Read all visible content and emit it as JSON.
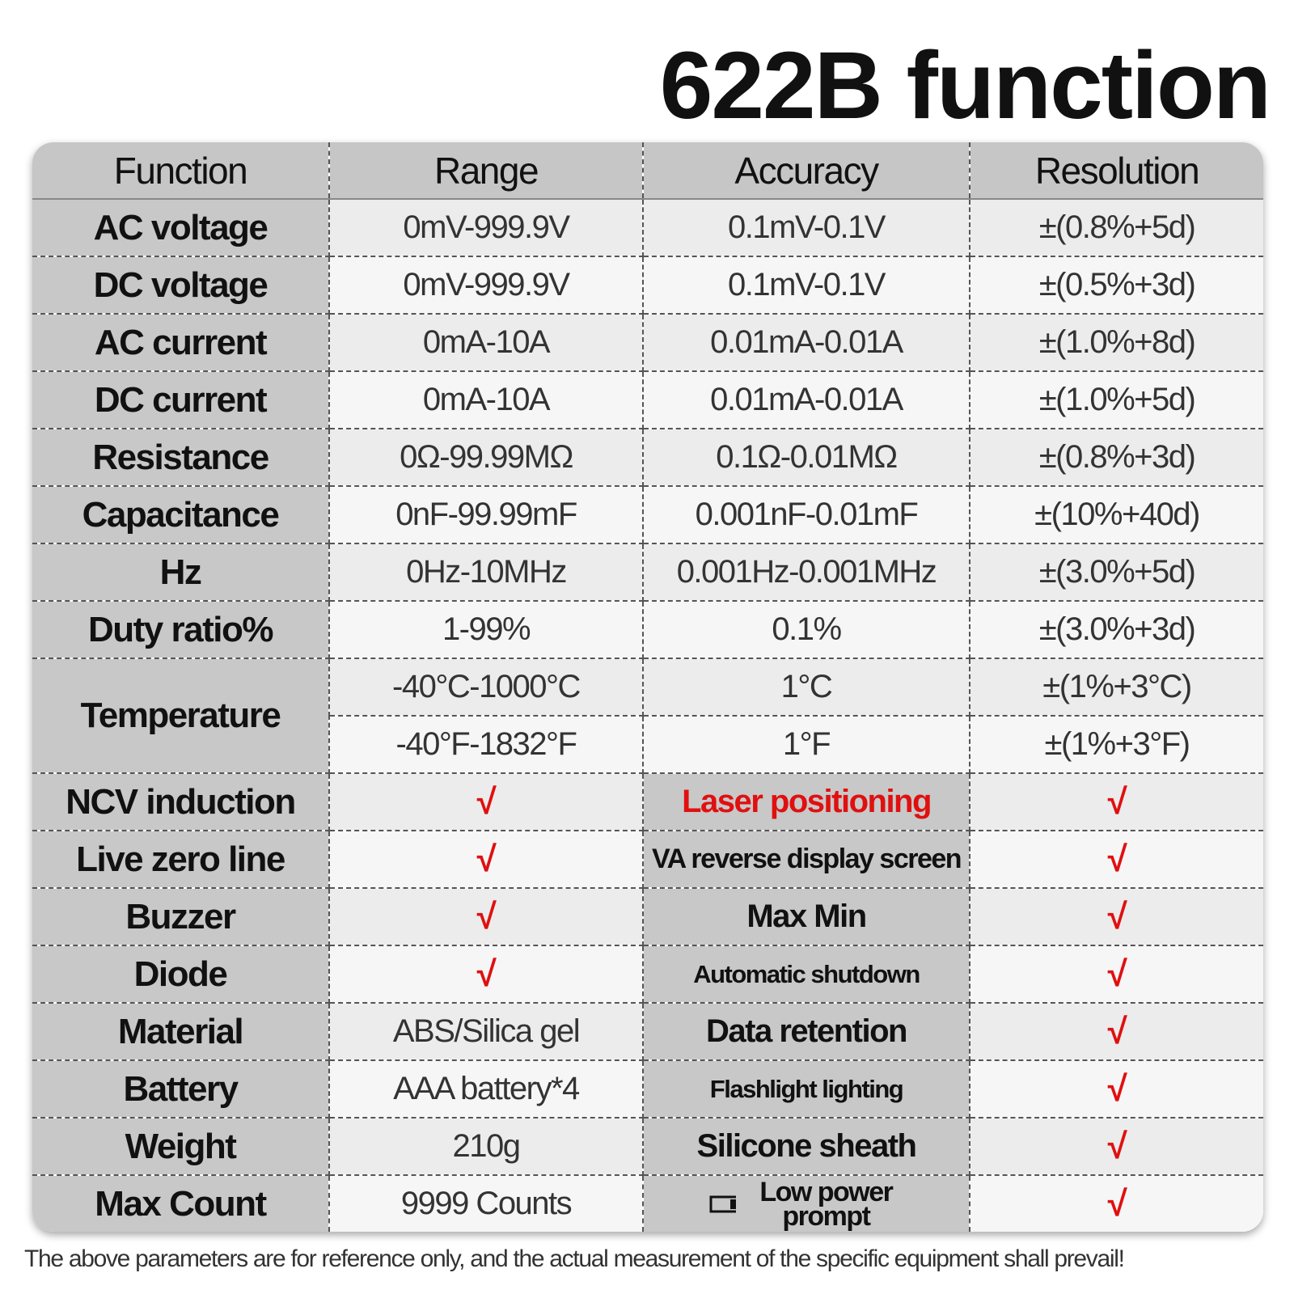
{
  "title": "622B function",
  "table": {
    "header": [
      "Function",
      "Range",
      "Accuracy",
      "Resolution"
    ],
    "measure_rows": [
      [
        "AC voltage",
        "0mV-999.9V",
        "0.1mV-0.1V",
        "±(0.8%+5d)"
      ],
      [
        "DC voltage",
        "0mV-999.9V",
        "0.1mV-0.1V",
        "±(0.5%+3d)"
      ],
      [
        "AC current",
        "0mA-10A",
        "0.01mA-0.01A",
        "±(1.0%+8d)"
      ],
      [
        "DC current",
        "0mA-10A",
        "0.01mA-0.01A",
        "±(1.0%+5d)"
      ],
      [
        "Resistance",
        "0Ω-99.99MΩ",
        "0.1Ω-0.01MΩ",
        "±(0.8%+3d)"
      ],
      [
        "Capacitance",
        "0nF-99.99mF",
        "0.001nF-0.01mF",
        "±(10%+40d)"
      ],
      [
        "Hz",
        "0Hz-10MHz",
        "0.001Hz-0.001MHz",
        "±(3.0%+5d)"
      ],
      [
        "Duty ratio%",
        "1-99%",
        "0.1%",
        "±(3.0%+3d)"
      ]
    ],
    "temperature": {
      "label": "Temperature",
      "rows": [
        [
          "-40°C-1000°C",
          "1°C",
          "±(1%+3°C)"
        ],
        [
          "-40°F-1832°F",
          "1°F",
          "±(1%+3°F)"
        ]
      ]
    },
    "feature_rows": [
      [
        "NCV induction",
        "√",
        "Laser positioning",
        "√"
      ],
      [
        "Live zero line",
        "√",
        "VA reverse display screen",
        "√"
      ],
      [
        "Buzzer",
        "√",
        "Max Min",
        "√"
      ],
      [
        "Diode",
        "√",
        "Automatic shutdown",
        "√"
      ],
      [
        "Material",
        "ABS/Silica gel",
        "Data retention",
        "√"
      ],
      [
        "Battery",
        "AAA battery*4",
        "Flashlight lighting",
        "√"
      ],
      [
        "Weight",
        "210g",
        "Silicone sheath",
        "√"
      ],
      [
        "Max Count",
        "9999 Counts",
        "Low power prompt",
        "√"
      ]
    ]
  },
  "footer": "The above parameters are for reference only, and the actual measurement of the specific equipment shall prevail!"
}
